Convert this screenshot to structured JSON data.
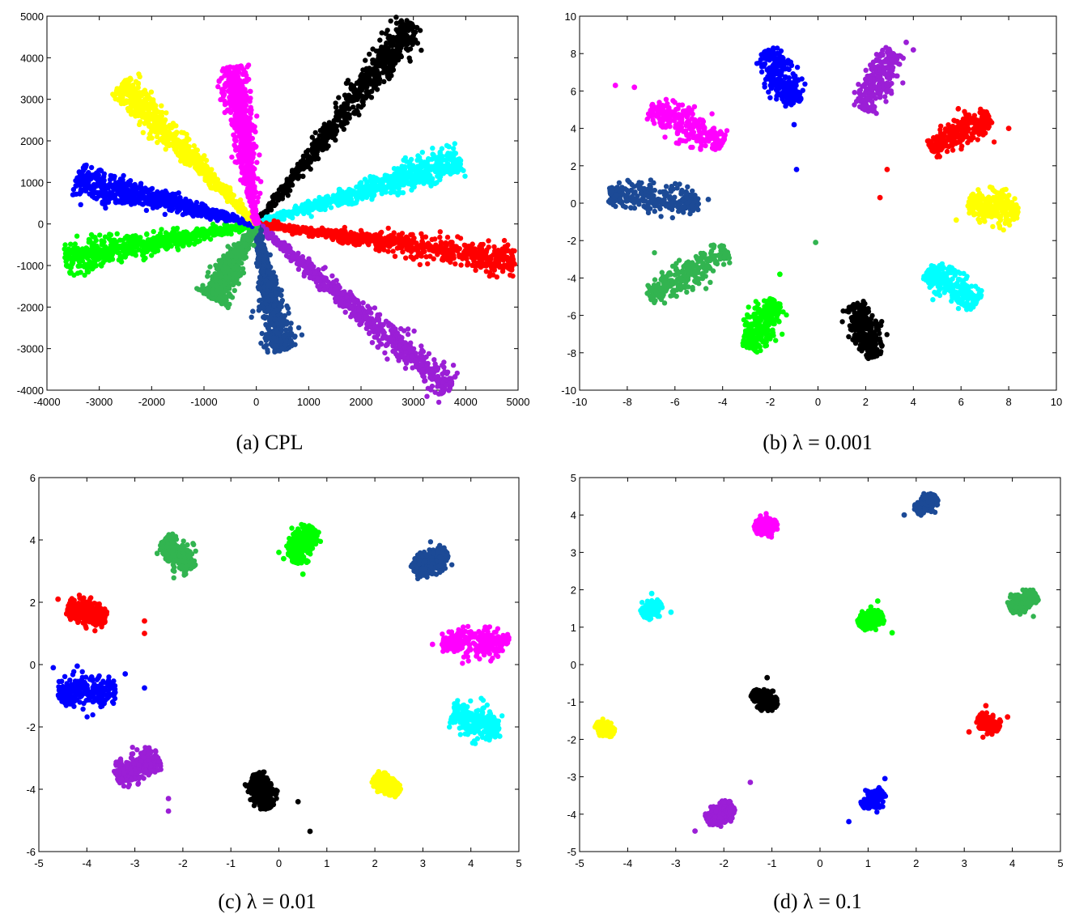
{
  "chart_data": [
    {
      "type": "scatter",
      "caption": "(a) CPL",
      "xlim": [
        -4000,
        5000
      ],
      "ylim": [
        -4000,
        5000
      ],
      "xticks": [
        -4000,
        -3000,
        -2000,
        -1000,
        0,
        1000,
        2000,
        3000,
        4000,
        5000
      ],
      "yticks": [
        -4000,
        -3000,
        -2000,
        -1000,
        0,
        1000,
        2000,
        3000,
        4000,
        5000
      ],
      "series": [
        {
          "color": "#000000",
          "shape": "ray",
          "start": [
            0,
            0
          ],
          "end": [
            3000,
            4800
          ]
        },
        {
          "color": "#00FFFF",
          "shape": "ray",
          "start": [
            0,
            0
          ],
          "end": [
            3900,
            1550
          ]
        },
        {
          "color": "#FF0000",
          "shape": "ray",
          "start": [
            0,
            0
          ],
          "end": [
            4950,
            -870
          ]
        },
        {
          "color": "#9B1FD6",
          "shape": "ray",
          "start": [
            0,
            0
          ],
          "end": [
            3700,
            -3980
          ]
        },
        {
          "color": "#1C4A96",
          "shape": "ray",
          "start": [
            0,
            0
          ],
          "end": [
            480,
            -3050
          ]
        },
        {
          "color": "#32B450",
          "shape": "ray",
          "start": [
            0,
            0
          ],
          "end": [
            -850,
            -1800
          ]
        },
        {
          "color": "#00FF00",
          "shape": "ray",
          "start": [
            0,
            0
          ],
          "end": [
            -3650,
            -850
          ]
        },
        {
          "color": "#0000FF",
          "shape": "ray",
          "start": [
            0,
            0
          ],
          "end": [
            -3450,
            1050
          ]
        },
        {
          "color": "#FFFF00",
          "shape": "ray",
          "start": [
            0,
            0
          ],
          "end": [
            -2600,
            3350
          ]
        },
        {
          "color": "#FF00FF",
          "shape": "ray",
          "start": [
            0,
            0
          ],
          "end": [
            -450,
            3800
          ]
        }
      ]
    },
    {
      "type": "scatter",
      "caption": "(b) λ = 0.001",
      "xlim": [
        -10,
        10
      ],
      "ylim": [
        -10,
        10
      ],
      "xticks": [
        -10,
        -8,
        -6,
        -4,
        -2,
        0,
        2,
        4,
        6,
        8,
        10
      ],
      "yticks": [
        -10,
        -8,
        -6,
        -4,
        -2,
        0,
        2,
        4,
        6,
        8,
        10
      ],
      "series": [
        {
          "color": "#0000FF",
          "shape": "cluster",
          "start": [
            -2.1,
            8.2
          ],
          "end": [
            -1.0,
            5.3
          ],
          "outliers": [
            [
              -1.0,
              4.2
            ],
            [
              -0.9,
              1.8
            ]
          ]
        },
        {
          "color": "#9B1FD6",
          "shape": "cluster",
          "start": [
            1.9,
            5.0
          ],
          "end": [
            3.2,
            8.1
          ],
          "outliers": [
            [
              3.7,
              8.6
            ],
            [
              4.0,
              8.2
            ]
          ]
        },
        {
          "color": "#FF00FF",
          "shape": "cluster",
          "start": [
            -7.0,
            5.2
          ],
          "end": [
            -4.0,
            3.2
          ],
          "outliers": [
            [
              -8.5,
              6.3
            ],
            [
              -7.7,
              6.2
            ]
          ]
        },
        {
          "color": "#FF0000",
          "shape": "cluster",
          "start": [
            4.7,
            3.0
          ],
          "end": [
            7.2,
            4.6
          ],
          "outliers": [
            [
              8.0,
              4.0
            ],
            [
              2.9,
              1.8
            ],
            [
              2.6,
              0.3
            ]
          ]
        },
        {
          "color": "#1C4A96",
          "shape": "cluster",
          "start": [
            -8.8,
            0.5
          ],
          "end": [
            -5.0,
            0.1
          ],
          "outliers": [
            [
              -4.6,
              0.2
            ]
          ]
        },
        {
          "color": "#FFFF00",
          "shape": "cluster",
          "start": [
            6.3,
            0.0
          ],
          "end": [
            8.4,
            -0.5
          ],
          "outliers": [
            [
              5.8,
              -0.9
            ]
          ]
        },
        {
          "color": "#32B450",
          "shape": "cluster",
          "start": [
            -7.1,
            -5.0
          ],
          "end": [
            -3.8,
            -2.6
          ],
          "outliers": [
            [
              -0.1,
              -2.1
            ]
          ]
        },
        {
          "color": "#00FFFF",
          "shape": "cluster",
          "start": [
            4.6,
            -3.6
          ],
          "end": [
            6.7,
            -5.3
          ],
          "outliers": []
        },
        {
          "color": "#00FF00",
          "shape": "cluster",
          "start": [
            -2.9,
            -7.8
          ],
          "end": [
            -1.8,
            -5.2
          ],
          "outliers": [
            [
              -1.6,
              -3.8
            ]
          ]
        },
        {
          "color": "#000000",
          "shape": "cluster",
          "start": [
            1.5,
            -5.4
          ],
          "end": [
            2.4,
            -8.2
          ],
          "outliers": []
        }
      ]
    },
    {
      "type": "scatter",
      "caption": "(c) λ = 0.01",
      "xlim": [
        -5,
        5
      ],
      "ylim": [
        -6,
        6
      ],
      "xticks": [
        -5,
        -4,
        -3,
        -2,
        -1,
        0,
        1,
        2,
        3,
        4,
        5
      ],
      "yticks": [
        -6,
        -4,
        -2,
        0,
        2,
        4,
        6
      ],
      "series": [
        {
          "color": "#32B450",
          "shape": "cluster",
          "start": [
            -2.4,
            4.0
          ],
          "end": [
            -1.8,
            3.1
          ],
          "outliers": []
        },
        {
          "color": "#00FF00",
          "shape": "cluster",
          "start": [
            0.3,
            3.3
          ],
          "end": [
            0.7,
            4.4
          ],
          "outliers": [
            [
              0.0,
              3.6
            ],
            [
              0.1,
              3.4
            ],
            [
              0.5,
              2.9
            ]
          ]
        },
        {
          "color": "#1C4A96",
          "shape": "cluster",
          "start": [
            2.8,
            3.0
          ],
          "end": [
            3.5,
            3.6
          ],
          "outliers": []
        },
        {
          "color": "#FF0000",
          "shape": "cluster",
          "start": [
            -4.4,
            1.8
          ],
          "end": [
            -3.6,
            1.5
          ],
          "outliers": [
            [
              -4.6,
              2.1
            ],
            [
              -2.8,
              1.4
            ],
            [
              -2.8,
              1.0
            ]
          ]
        },
        {
          "color": "#FF00FF",
          "shape": "cluster",
          "start": [
            3.4,
            0.65
          ],
          "end": [
            4.8,
            0.75
          ],
          "outliers": [
            [
              3.2,
              0.65
            ],
            [
              4.3,
              1.2
            ]
          ]
        },
        {
          "color": "#0000FF",
          "shape": "cluster",
          "start": [
            -4.6,
            -0.9
          ],
          "end": [
            -3.4,
            -0.8
          ],
          "outliers": [
            [
              -4.7,
              -0.1
            ],
            [
              -4.2,
              -0.05
            ],
            [
              -3.2,
              -0.3
            ],
            [
              -2.8,
              -0.75
            ],
            [
              -3.9,
              -0.4
            ]
          ]
        },
        {
          "color": "#00FFFF",
          "shape": "cluster",
          "start": [
            3.6,
            -1.6
          ],
          "end": [
            4.6,
            -2.0
          ],
          "outliers": [
            [
              4.6,
              -2.3
            ]
          ]
        },
        {
          "color": "#9B1FD6",
          "shape": "cluster",
          "start": [
            -3.4,
            -3.6
          ],
          "end": [
            -2.5,
            -3.0
          ],
          "outliers": [
            [
              -2.3,
              -4.3
            ],
            [
              -2.3,
              -4.7
            ],
            [
              -2.8,
              -2.8
            ]
          ]
        },
        {
          "color": "#000000",
          "shape": "cluster",
          "start": [
            -0.5,
            -3.5
          ],
          "end": [
            -0.2,
            -4.6
          ],
          "outliers": [
            [
              0.4,
              -4.4
            ],
            [
              0.65,
              -5.35
            ]
          ]
        },
        {
          "color": "#FFFF00",
          "shape": "cluster",
          "start": [
            2.0,
            -3.6
          ],
          "end": [
            2.5,
            -4.1
          ],
          "outliers": []
        }
      ]
    },
    {
      "type": "scatter",
      "caption": "(d) λ = 0.1",
      "xlim": [
        -5,
        5
      ],
      "ylim": [
        -5,
        5
      ],
      "xticks": [
        -5,
        -4,
        -3,
        -2,
        -1,
        0,
        1,
        2,
        3,
        4,
        5
      ],
      "yticks": [
        -5,
        -4,
        -3,
        -2,
        -1,
        0,
        1,
        2,
        3,
        4,
        5
      ],
      "series": [
        {
          "color": "#1C4A96",
          "shape": "cluster",
          "start": [
            2.0,
            4.1
          ],
          "end": [
            2.4,
            4.5
          ],
          "outliers": [
            [
              1.75,
              4.0
            ]
          ]
        },
        {
          "color": "#FF00FF",
          "shape": "cluster",
          "start": [
            -1.35,
            3.6
          ],
          "end": [
            -0.9,
            3.8
          ],
          "outliers": []
        },
        {
          "color": "#00FFFF",
          "shape": "cluster",
          "start": [
            -3.7,
            1.35
          ],
          "end": [
            -3.3,
            1.6
          ],
          "outliers": [
            [
              -3.1,
              1.4
            ],
            [
              -3.5,
              1.9
            ]
          ]
        },
        {
          "color": "#00FF00",
          "shape": "cluster",
          "start": [
            0.8,
            1.1
          ],
          "end": [
            1.3,
            1.3
          ],
          "outliers": [
            [
              1.5,
              0.85
            ],
            [
              1.2,
              1.7
            ]
          ]
        },
        {
          "color": "#32B450",
          "shape": "cluster",
          "start": [
            3.95,
            1.5
          ],
          "end": [
            4.5,
            1.85
          ],
          "outliers": []
        },
        {
          "color": "#000000",
          "shape": "cluster",
          "start": [
            -1.4,
            -0.75
          ],
          "end": [
            -0.9,
            -1.1
          ],
          "outliers": [
            [
              -1.1,
              -0.35
            ]
          ]
        },
        {
          "color": "#FF0000",
          "shape": "cluster",
          "start": [
            3.3,
            -1.4
          ],
          "end": [
            3.7,
            -1.75
          ],
          "outliers": [
            [
              3.1,
              -1.8
            ],
            [
              3.45,
              -1.1
            ],
            [
              3.9,
              -1.4
            ]
          ]
        },
        {
          "color": "#FFFF00",
          "shape": "cluster",
          "start": [
            -4.65,
            -1.6
          ],
          "end": [
            -4.3,
            -1.85
          ],
          "outliers": []
        },
        {
          "color": "#0000FF",
          "shape": "cluster",
          "start": [
            0.9,
            -3.8
          ],
          "end": [
            1.3,
            -3.4
          ],
          "outliers": [
            [
              0.6,
              -4.2
            ],
            [
              1.35,
              -3.05
            ]
          ]
        },
        {
          "color": "#9B1FD6",
          "shape": "cluster",
          "start": [
            -2.35,
            -4.15
          ],
          "end": [
            -1.8,
            -3.8
          ],
          "outliers": [
            [
              -2.6,
              -4.45
            ],
            [
              -1.45,
              -3.15
            ]
          ]
        }
      ]
    }
  ]
}
